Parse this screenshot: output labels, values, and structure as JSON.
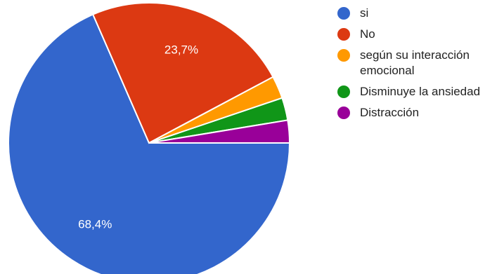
{
  "chart_data": {
    "type": "pie",
    "title": "",
    "categories": [
      "si",
      "No",
      "según su interacción emocional",
      "Disminuye la ansiedad",
      "Distracción"
    ],
    "values": [
      68.4,
      23.7,
      2.6,
      2.6,
      2.6
    ],
    "colors": [
      "#3366cc",
      "#dc3912",
      "#ff9900",
      "#109618",
      "#990099"
    ],
    "slice_labels": [
      "68,4%",
      "23,7%",
      "",
      "",
      ""
    ],
    "legend_position": "right"
  },
  "legend": {
    "items": [
      {
        "label": "si",
        "color": "#3366cc"
      },
      {
        "label": "No",
        "color": "#dc3912"
      },
      {
        "label": "según su interacción emocional",
        "color": "#ff9900"
      },
      {
        "label": "Disminuye la ansiedad",
        "color": "#109618"
      },
      {
        "label": "Distracción",
        "color": "#990099"
      }
    ]
  }
}
